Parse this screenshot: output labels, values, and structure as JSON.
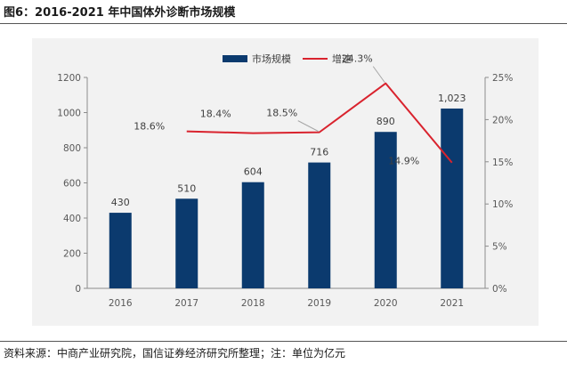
{
  "figure_title": "图6：2016-2021 年中国体外诊断市场规模",
  "source_note": "资料来源：中商产业研究院，国信证券经济研究所整理；注：单位为亿元",
  "chart_data": {
    "type": "bar",
    "categories": [
      "2016",
      "2017",
      "2018",
      "2019",
      "2020",
      "2021"
    ],
    "series": [
      {
        "name": "市场规模",
        "type": "bar",
        "axis": "left",
        "color": "#0b3a6e",
        "values": [
          430,
          510,
          604,
          716,
          890,
          1023
        ],
        "labels": [
          "430",
          "510",
          "604",
          "716",
          "890",
          "1,023"
        ]
      },
      {
        "name": "增速",
        "type": "line",
        "axis": "right",
        "color": "#d9232e",
        "values": [
          null,
          18.6,
          18.4,
          18.5,
          24.3,
          14.9
        ],
        "labels": [
          "",
          "18.6%",
          "18.4%",
          "18.5%",
          "24.3%",
          "14.9%"
        ]
      }
    ],
    "y_left": {
      "min": 0,
      "max": 1200,
      "ticks": [
        "0",
        "200",
        "400",
        "600",
        "800",
        "1000",
        "1200"
      ]
    },
    "y_right": {
      "min": 0,
      "max": 25,
      "ticks": [
        "0%",
        "5%",
        "10%",
        "15%",
        "20%",
        "25%"
      ]
    },
    "legend_position": "top-center",
    "grid": false
  }
}
